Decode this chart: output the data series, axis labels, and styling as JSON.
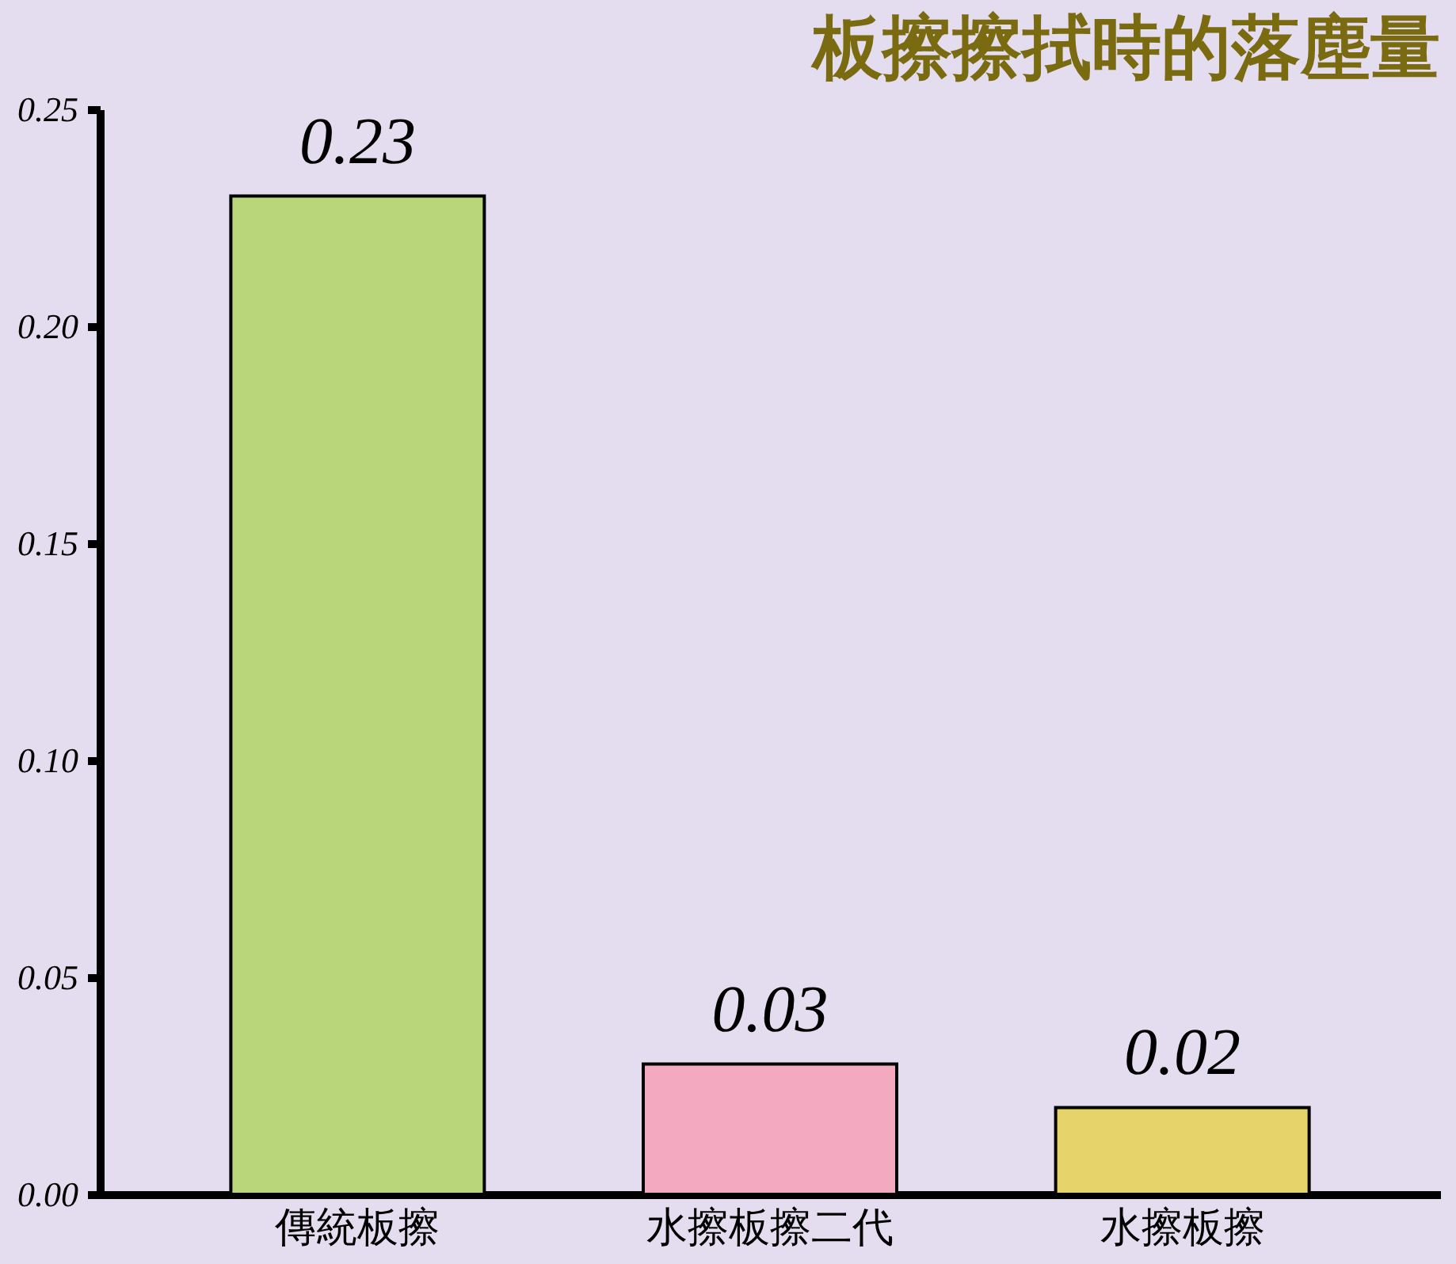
{
  "chart_data": {
    "type": "bar",
    "title": "板擦擦拭時的落塵量",
    "categories": [
      "傳統板擦",
      "水擦板擦二代",
      "水擦板擦"
    ],
    "values": [
      0.23,
      0.03,
      0.02
    ],
    "colors": [
      "#b9d77a",
      "#f3a9bf",
      "#e6d36a"
    ],
    "value_labels": [
      "0.23",
      "0.03",
      "0.02"
    ],
    "ylim": [
      0,
      0.25
    ],
    "yticks": [
      {
        "value": 0,
        "label": "0.00"
      },
      0.05,
      {
        "value": 0.1,
        "label": "0.10"
      },
      0.15,
      {
        "value": 0.2,
        "label": "0.20"
      },
      0.25
    ],
    "grid": false,
    "legend": false
  }
}
